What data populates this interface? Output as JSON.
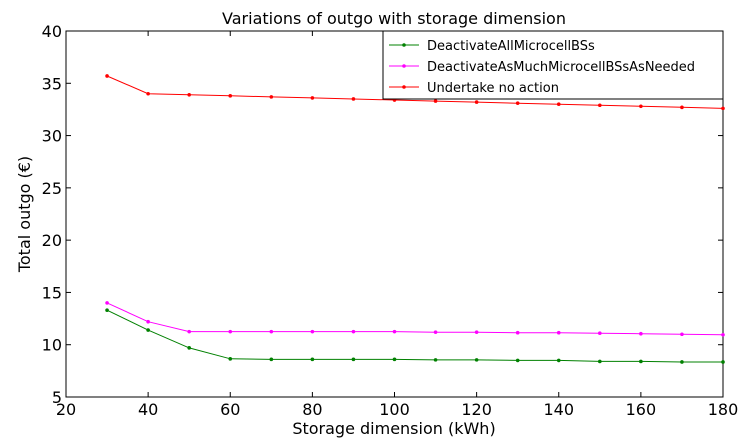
{
  "chart_data": {
    "type": "line",
    "title": "Variations of outgo with storage dimension",
    "xlabel": "Storage dimension (kWh)",
    "ylabel": "Total outgo (€)",
    "xlim": [
      20,
      180
    ],
    "ylim": [
      5,
      40
    ],
    "xticks": [
      "20",
      "40",
      "60",
      "80",
      "100",
      "120",
      "140",
      "160",
      "180"
    ],
    "yticks": [
      "5",
      "10",
      "15",
      "20",
      "25",
      "30",
      "35",
      "40"
    ],
    "grid": false,
    "legend_position": "top-right",
    "x": [
      30,
      40,
      50,
      60,
      70,
      80,
      90,
      100,
      110,
      120,
      130,
      140,
      150,
      160,
      170,
      180
    ],
    "series": [
      {
        "name": "DeactivateAllMicrocellBSs",
        "color": "#008000",
        "values": [
          13.3,
          11.4,
          9.7,
          8.65,
          8.6,
          8.6,
          8.6,
          8.6,
          8.55,
          8.55,
          8.5,
          8.5,
          8.4,
          8.4,
          8.35,
          8.35
        ]
      },
      {
        "name": "DeactivateAsMuchMicrocellBSsAsNeeded",
        "color": "#ff00ff",
        "values": [
          14.0,
          12.2,
          11.25,
          11.25,
          11.25,
          11.25,
          11.25,
          11.25,
          11.2,
          11.2,
          11.15,
          11.15,
          11.1,
          11.05,
          11.0,
          10.95
        ]
      },
      {
        "name": "Undertake no action",
        "color": "#ff0000",
        "values": [
          35.7,
          34.0,
          33.9,
          33.8,
          33.7,
          33.6,
          33.5,
          33.4,
          33.3,
          33.2,
          33.1,
          33.0,
          32.9,
          32.8,
          32.7,
          32.6
        ]
      }
    ]
  }
}
